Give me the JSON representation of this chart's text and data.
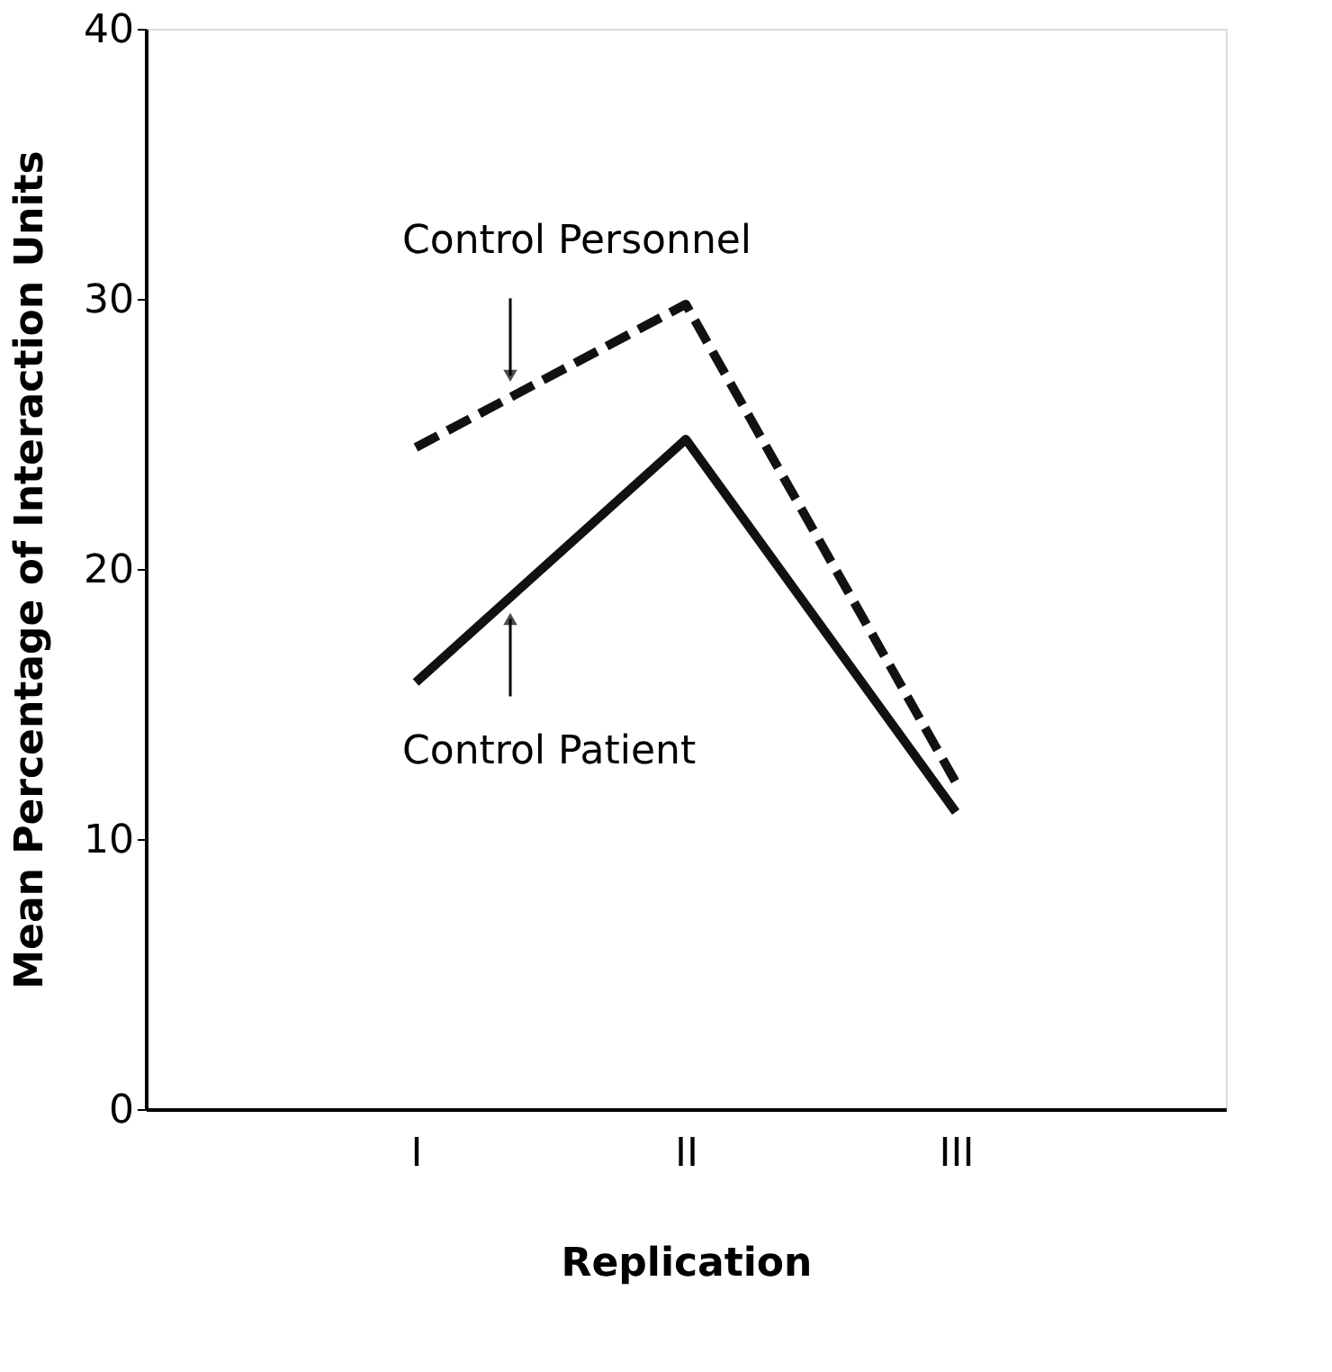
{
  "chart_data": {
    "type": "line",
    "ylabel": "Mean Percentage of Interaction Units",
    "xlabel": "Replication",
    "categories": [
      "I",
      "II",
      "III"
    ],
    "series": [
      {
        "name": "Control Personnel",
        "color": "#111111",
        "line_style": "dashed",
        "values": [
          24.5,
          29.8,
          12.1
        ]
      },
      {
        "name": "Control Patient",
        "color": "#111111",
        "line_style": "solid",
        "values": [
          15.8,
          24.8,
          11.0
        ]
      }
    ],
    "ylim": [
      0,
      40
    ],
    "yticks": [
      0,
      10,
      20,
      30,
      40
    ],
    "grid": false,
    "legend": false,
    "marker": "none"
  }
}
